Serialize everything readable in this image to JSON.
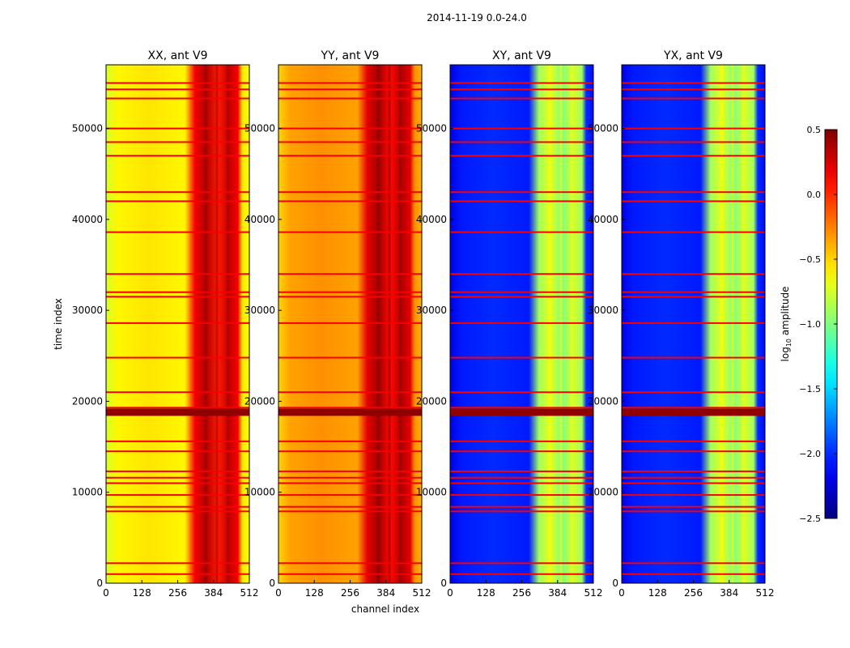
{
  "chart_data": {
    "type": "heatmap",
    "title": "2014-11-19 0.0-24.0",
    "xlabel": "channel index",
    "ylabel": "time index",
    "xlim": [
      0,
      512
    ],
    "ylim": [
      0,
      57000
    ],
    "x_ticks": [
      "0",
      "128",
      "256",
      "384",
      "512"
    ],
    "y_ticks": [
      "0",
      "10000",
      "20000",
      "30000",
      "40000",
      "50000"
    ],
    "y_tick_values": [
      0,
      10000,
      20000,
      30000,
      40000,
      50000
    ],
    "x_tick_values": [
      0,
      128,
      256,
      384,
      512
    ],
    "panels": [
      {
        "title": "XX, ant V9",
        "baseline": -0.65,
        "band": 0.15
      },
      {
        "title": "YY, ant V9",
        "baseline": -0.4,
        "band": 0.2
      },
      {
        "title": "XY, ant V9",
        "baseline": -2.1,
        "band": -0.9
      },
      {
        "title": "YX, ant V9",
        "baseline": -2.1,
        "band": -0.9
      }
    ],
    "band_channels": [
      330,
      480
    ],
    "flag_rows": [
      1000,
      2200,
      7900,
      8400,
      9700,
      11000,
      11600,
      12300,
      14500,
      15600,
      18800,
      19300,
      21000,
      24800,
      28600,
      31500,
      32000,
      34000,
      38600,
      42000,
      43000,
      47000,
      48500,
      50000,
      53300,
      54300,
      55000
    ],
    "colorbar": {
      "label_prefix": "log",
      "label_subscript": "10",
      "label_suffix": " amplitude",
      "min": -2.5,
      "max": 0.5,
      "ticks": [
        "0.5",
        "0.0",
        "−0.5",
        "−1.0",
        "−1.5",
        "−2.0",
        "−2.5"
      ],
      "tick_values": [
        0.5,
        0.0,
        -0.5,
        -1.0,
        -1.5,
        -2.0,
        -2.5
      ]
    },
    "colormap": "jet"
  }
}
